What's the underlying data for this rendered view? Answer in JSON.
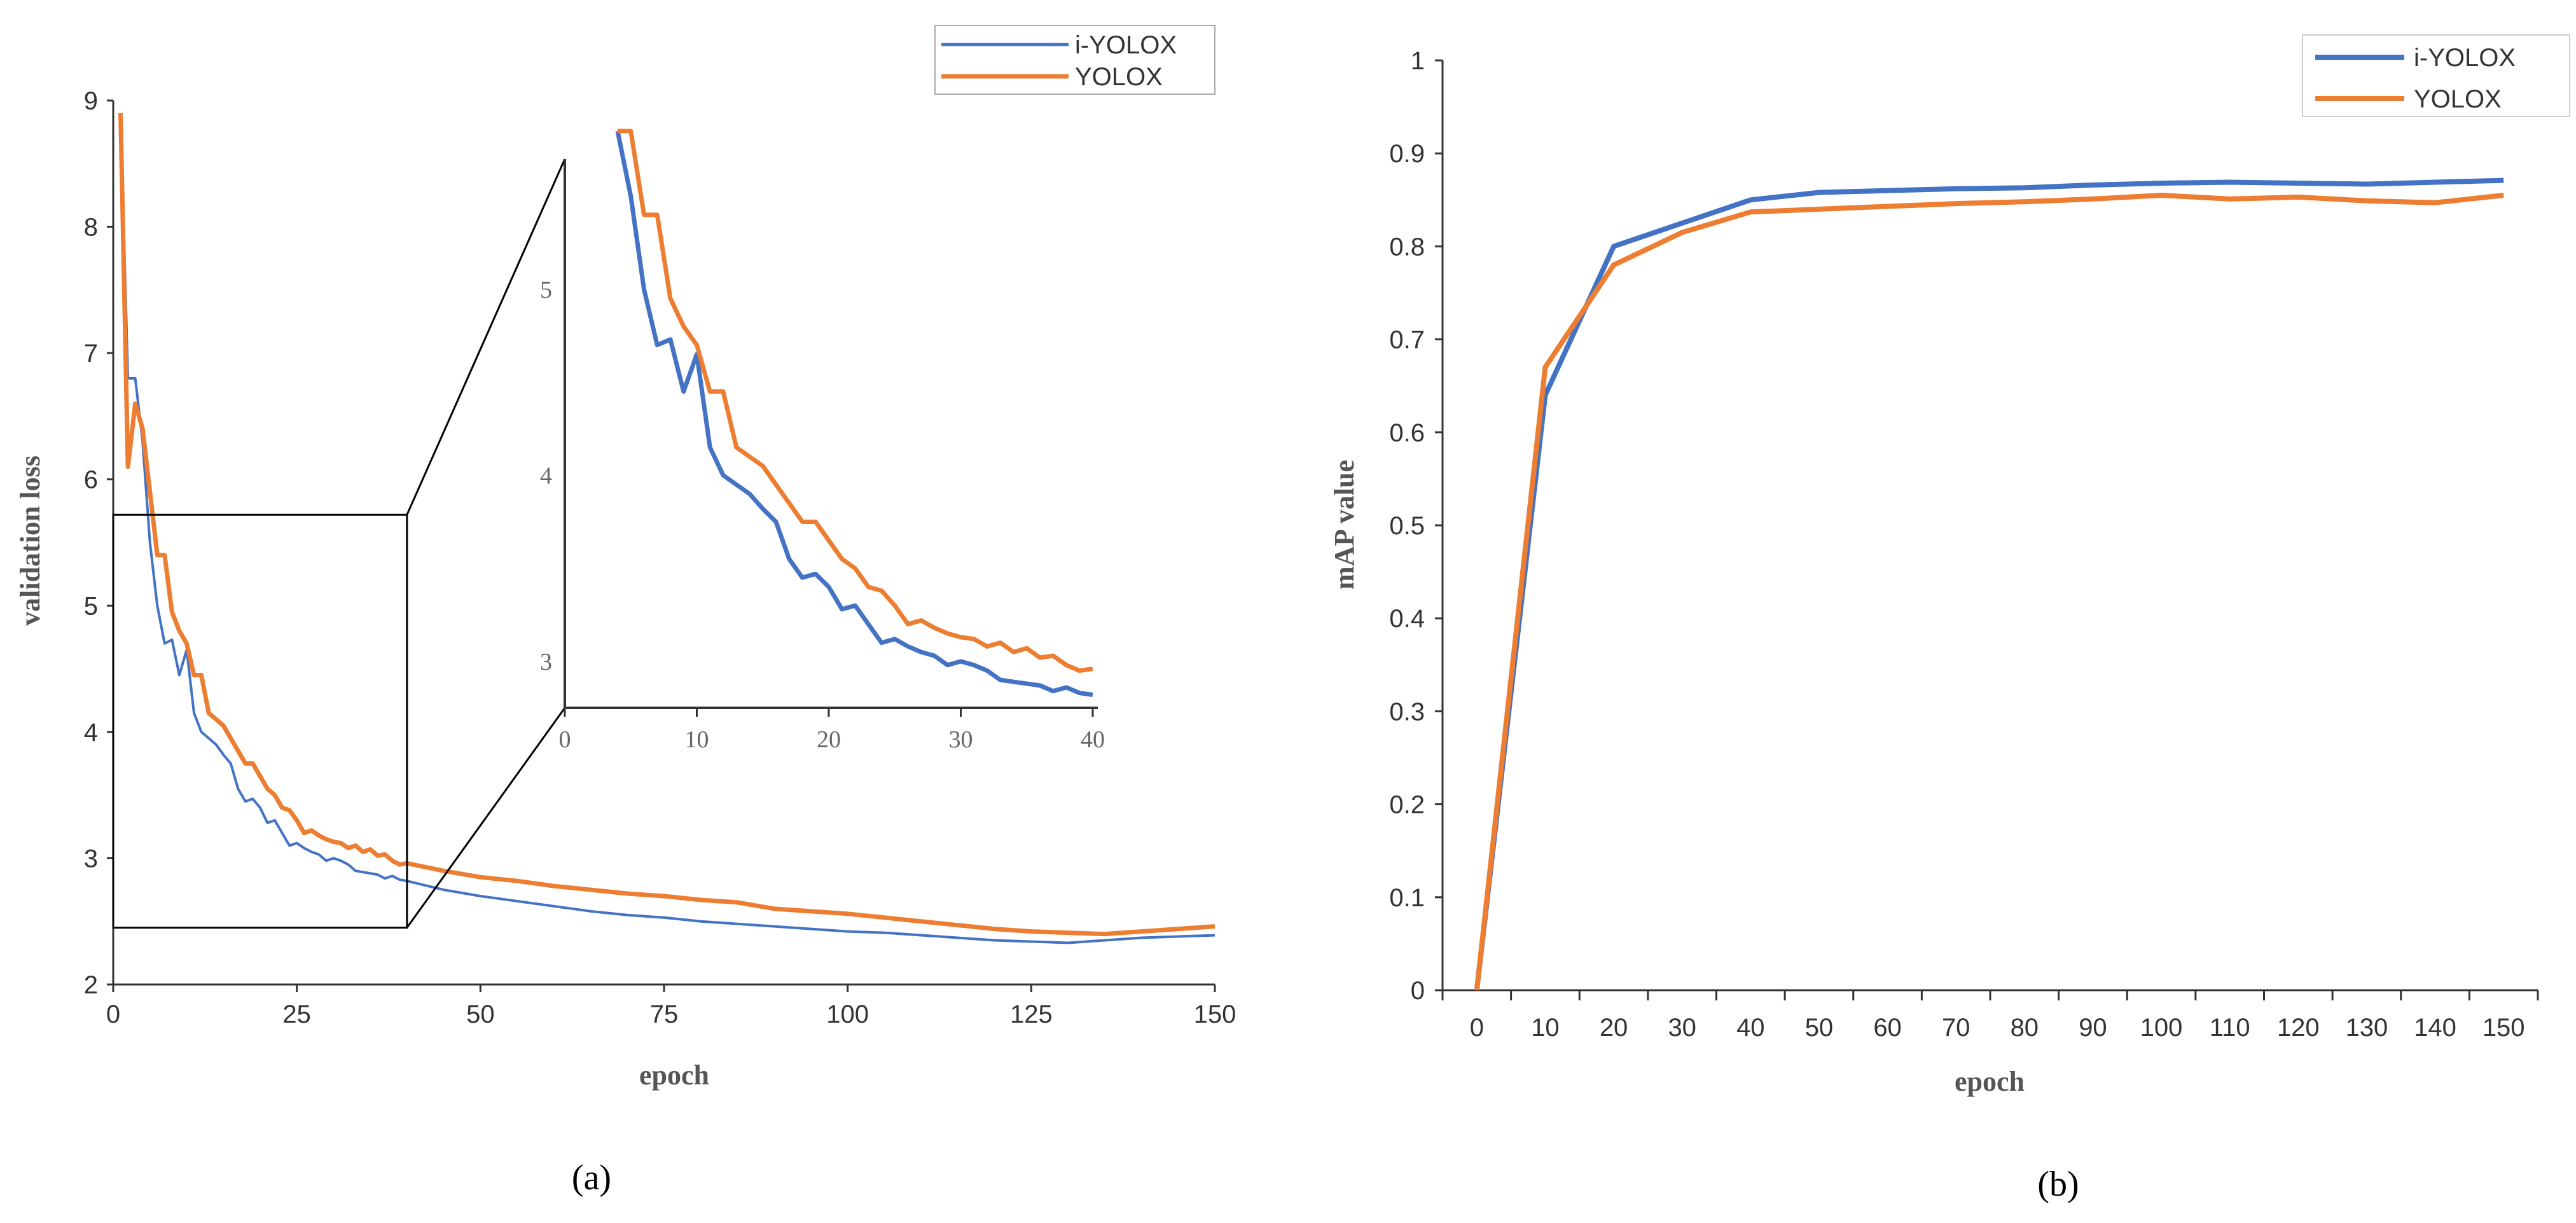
{
  "chart_data": [
    {
      "id": "a",
      "type": "line",
      "caption": "(a)",
      "xlabel": "epoch",
      "ylabel": "validation  loss",
      "xlim": [
        0,
        150
      ],
      "ylim": [
        2,
        9
      ],
      "x_ticks": [
        "0",
        "25",
        "50",
        "75",
        "100",
        "125",
        "150"
      ],
      "y_ticks": [
        "2",
        "3",
        "4",
        "5",
        "6",
        "7",
        "8",
        "9"
      ],
      "legend_position": "top-right",
      "series": [
        {
          "name": "i-YOLOX",
          "color": "#4472C4",
          "x": [
            1,
            2,
            3,
            4,
            5,
            6,
            7,
            8,
            9,
            10,
            11,
            12,
            13,
            14,
            15,
            16,
            17,
            18,
            19,
            20,
            21,
            22,
            23,
            24,
            25,
            26,
            27,
            28,
            29,
            30,
            31,
            32,
            33,
            34,
            35,
            36,
            37,
            38,
            39,
            40,
            45,
            50,
            55,
            60,
            65,
            70,
            75,
            80,
            85,
            90,
            95,
            100,
            105,
            110,
            115,
            120,
            125,
            130,
            135,
            140,
            145,
            150
          ],
          "y": [
            8.9,
            6.8,
            6.8,
            6.3,
            5.5,
            5.0,
            4.7,
            4.73,
            4.45,
            4.65,
            4.15,
            4.0,
            3.95,
            3.9,
            3.82,
            3.75,
            3.55,
            3.45,
            3.47,
            3.4,
            3.28,
            3.3,
            3.2,
            3.1,
            3.12,
            3.08,
            3.05,
            3.03,
            2.98,
            3.0,
            2.98,
            2.95,
            2.9,
            2.89,
            2.88,
            2.87,
            2.84,
            2.86,
            2.83,
            2.82,
            2.75,
            2.7,
            2.66,
            2.62,
            2.58,
            2.55,
            2.53,
            2.5,
            2.48,
            2.46,
            2.44,
            2.42,
            2.41,
            2.39,
            2.37,
            2.35,
            2.34,
            2.33,
            2.35,
            2.37,
            2.38,
            2.39
          ]
        },
        {
          "name": "YOLOX",
          "color": "#ED7D31",
          "x": [
            1,
            2,
            3,
            4,
            5,
            6,
            7,
            8,
            9,
            10,
            11,
            12,
            13,
            14,
            15,
            16,
            17,
            18,
            19,
            20,
            21,
            22,
            23,
            24,
            25,
            26,
            27,
            28,
            29,
            30,
            31,
            32,
            33,
            34,
            35,
            36,
            37,
            38,
            39,
            40,
            45,
            50,
            55,
            60,
            65,
            70,
            75,
            80,
            85,
            90,
            95,
            100,
            105,
            110,
            115,
            120,
            125,
            130,
            135,
            140,
            145,
            150
          ],
          "y": [
            8.9,
            6.1,
            6.6,
            6.4,
            5.9,
            5.4,
            5.4,
            4.95,
            4.8,
            4.7,
            4.45,
            4.45,
            4.15,
            4.1,
            4.05,
            3.95,
            3.85,
            3.75,
            3.75,
            3.65,
            3.55,
            3.5,
            3.4,
            3.38,
            3.3,
            3.2,
            3.22,
            3.18,
            3.15,
            3.13,
            3.12,
            3.08,
            3.1,
            3.05,
            3.07,
            3.02,
            3.03,
            2.98,
            2.95,
            2.96,
            2.9,
            2.85,
            2.82,
            2.78,
            2.75,
            2.72,
            2.7,
            2.67,
            2.65,
            2.6,
            2.58,
            2.56,
            2.53,
            2.5,
            2.47,
            2.44,
            2.42,
            2.41,
            2.4,
            2.42,
            2.44,
            2.46
          ]
        }
      ]
    },
    {
      "id": "a-inset",
      "type": "line",
      "xlim": [
        0,
        40
      ],
      "ylim": [
        2.75,
        5.7
      ],
      "x_ticks": [
        "0",
        "10",
        "20",
        "30",
        "40"
      ],
      "y_ticks": [
        "3",
        "4",
        "5"
      ],
      "series_from": "a"
    },
    {
      "id": "b",
      "type": "line",
      "caption": "(b)",
      "xlabel": "epoch",
      "ylabel": "mAP  value",
      "ylim": [
        0,
        1
      ],
      "categories": [
        "0",
        "10",
        "20",
        "30",
        "40",
        "50",
        "60",
        "70",
        "80",
        "90",
        "100",
        "110",
        "120",
        "130",
        "140",
        "150"
      ],
      "y_ticks": [
        "0",
        "0.1",
        "0.2",
        "0.3",
        "0.4",
        "0.5",
        "0.6",
        "0.7",
        "0.8",
        "0.9",
        "1"
      ],
      "legend_position": "top-right",
      "series": [
        {
          "name": "i-YOLOX",
          "color": "#4472C4",
          "values": [
            0,
            0.64,
            0.8,
            0.825,
            0.85,
            0.858,
            0.86,
            0.862,
            0.863,
            0.866,
            0.868,
            0.869,
            0.868,
            0.867,
            0.869,
            0.871
          ]
        },
        {
          "name": "YOLOX",
          "color": "#ED7D31",
          "values": [
            0,
            0.67,
            0.78,
            0.815,
            0.837,
            0.84,
            0.843,
            0.846,
            0.848,
            0.851,
            0.855,
            0.851,
            0.853,
            0.849,
            0.847,
            0.855
          ]
        }
      ]
    }
  ]
}
